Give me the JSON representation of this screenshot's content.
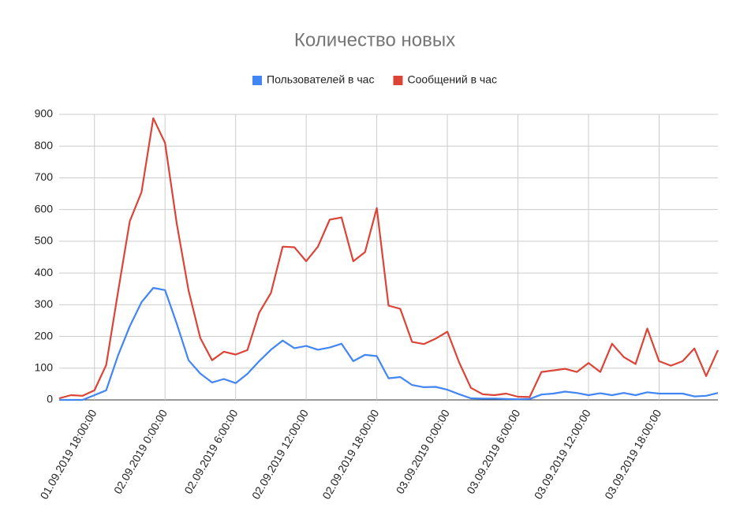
{
  "chart_data": {
    "type": "line",
    "title": "Количество новых",
    "categories": [
      null,
      null,
      null,
      "01.09.2019 18:00:00",
      null,
      null,
      null,
      null,
      null,
      "02.09.2019 0:00:00",
      null,
      null,
      null,
      null,
      null,
      "02.09.2019 6:00:00",
      null,
      null,
      null,
      null,
      null,
      "02.09.2019 12:00:00",
      null,
      null,
      null,
      null,
      null,
      "02.09.2019 18:00:00",
      null,
      null,
      null,
      null,
      null,
      "03.09.2019 0:00:00",
      null,
      null,
      null,
      null,
      null,
      "03.09.2019 6:00:00",
      null,
      null,
      null,
      null,
      null,
      "03.09.2019 12:00:00",
      null,
      null,
      null,
      null,
      null,
      "03.09.2019 18:00:00",
      null,
      null,
      null,
      null,
      null
    ],
    "series": [
      {
        "name": "Пользователей в час",
        "color": "#4285f4",
        "values": [
          0,
          0,
          0,
          15,
          30,
          140,
          232,
          308,
          353,
          346,
          240,
          125,
          83,
          55,
          66,
          53,
          82,
          122,
          158,
          187,
          163,
          170,
          158,
          165,
          177,
          122,
          142,
          138,
          68,
          72,
          47,
          40,
          41,
          32,
          18,
          5,
          4,
          4,
          3,
          2,
          3,
          17,
          20,
          26,
          22,
          15,
          21,
          15,
          22,
          15,
          24,
          20,
          20,
          20,
          11,
          13,
          22
        ]
      },
      {
        "name": "Сообщений в час",
        "color": "#db4437",
        "values": [
          5,
          15,
          13,
          30,
          110,
          340,
          563,
          655,
          888,
          810,
          555,
          345,
          195,
          125,
          152,
          143,
          157,
          275,
          337,
          483,
          481,
          437,
          483,
          568,
          575,
          437,
          466,
          605,
          297,
          287,
          183,
          176,
          193,
          215,
          118,
          38,
          18,
          15,
          20,
          10,
          9,
          88,
          93,
          98,
          88,
          116,
          88,
          177,
          135,
          113,
          225,
          122,
          108,
          122,
          162,
          75,
          157
        ]
      }
    ],
    "ylim": [
      0,
      900
    ],
    "yticks": [
      0,
      100,
      200,
      300,
      400,
      500,
      600,
      700,
      800,
      900
    ],
    "grid": true,
    "legend": "top"
  }
}
